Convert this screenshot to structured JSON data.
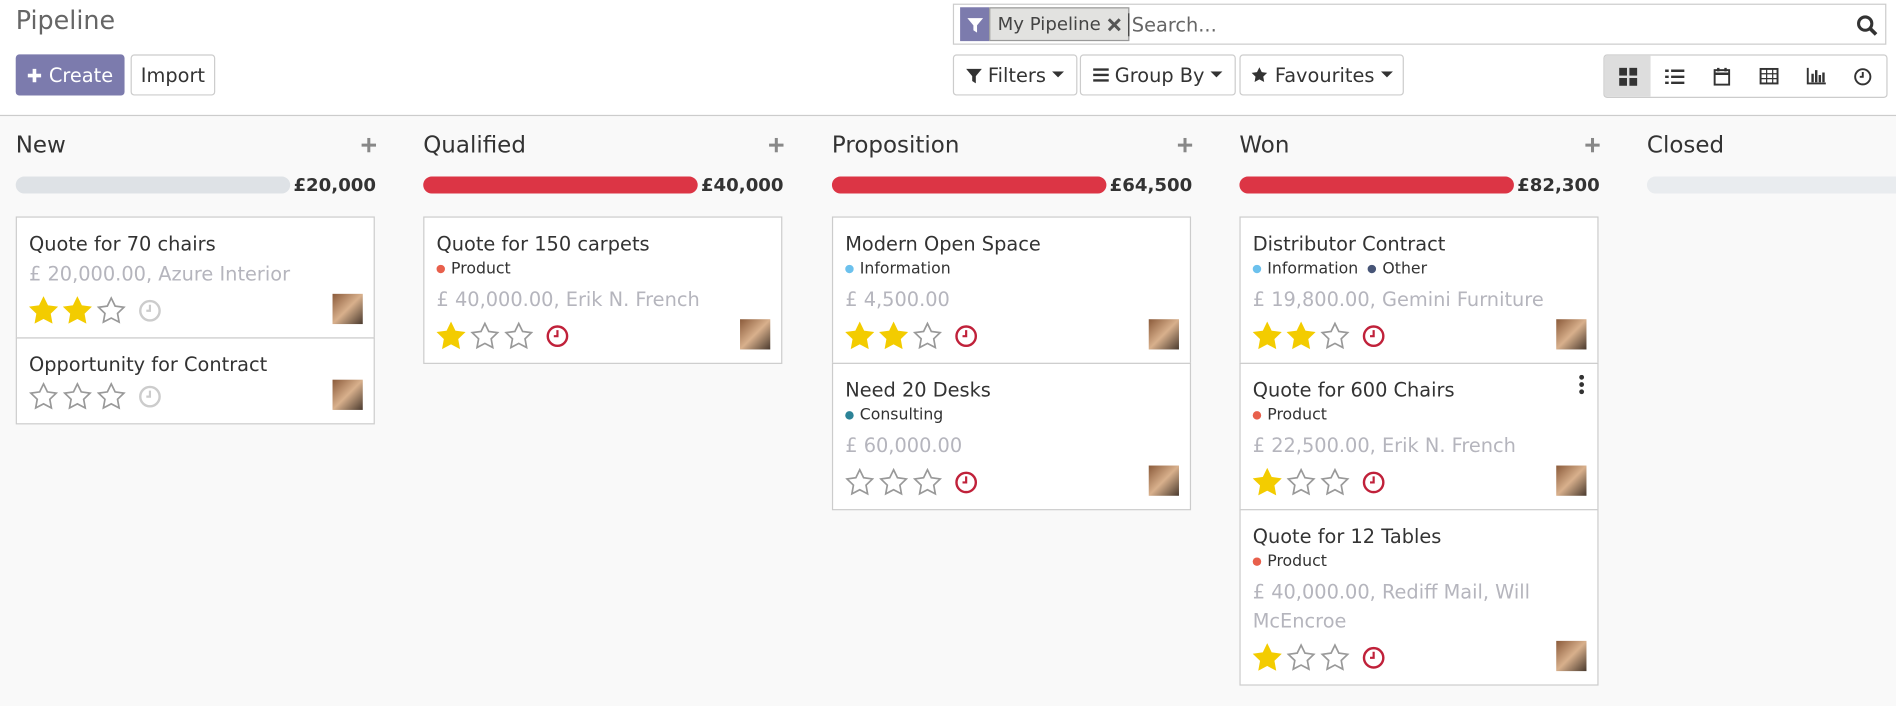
{
  "header": {
    "title": "Pipeline",
    "create": "Create",
    "import": "Import",
    "facet": "My Pipeline",
    "search_placeholder": "Search...",
    "filters": "Filters",
    "group_by": "Group By",
    "favourites": "Favourites"
  },
  "columns": [
    {
      "name": "New",
      "total": "£20,000",
      "bar_color": "#dee2e6",
      "cards": [
        {
          "title": "Quote for 70 chairs",
          "tags": [],
          "amount": "£ 20,000.00, Azure Interior",
          "priority": 2,
          "activity_color": "#ccc"
        },
        {
          "title": "Opportunity for Contract",
          "tags": [],
          "priority": 0,
          "activity_color": "#ccc"
        }
      ]
    },
    {
      "name": "Qualified",
      "total": "£40,000",
      "bar_color": "#dc3545",
      "cards": [
        {
          "title": "Quote for 150 carpets",
          "tags": [
            {
              "name": "Product",
              "color": "#e8604c"
            }
          ],
          "amount": "£ 40,000.00, Erik N. French",
          "priority": 1,
          "activity_color": "#c0213a"
        }
      ]
    },
    {
      "name": "Proposition",
      "total": "£64,500",
      "bar_color": "#dc3545",
      "cards": [
        {
          "title": "Modern Open Space",
          "tags": [
            {
              "name": "Information",
              "color": "#6cc1ed"
            }
          ],
          "amount": "£ 4,500.00",
          "priority": 2,
          "activity_color": "#c0213a"
        },
        {
          "title": "Need 20 Desks",
          "tags": [
            {
              "name": "Consulting",
              "color": "#2c8397"
            }
          ],
          "amount": "£ 60,000.00",
          "priority": 0,
          "activity_color": "#c0213a"
        }
      ]
    },
    {
      "name": "Won",
      "total": "£82,300",
      "bar_color": "#dc3545",
      "cards": [
        {
          "title": "Distributor Contract",
          "tags": [
            {
              "name": "Information",
              "color": "#6cc1ed"
            },
            {
              "name": "Other",
              "color": "#475577"
            }
          ],
          "amount": "£ 19,800.00, Gemini Furniture",
          "priority": 2,
          "activity_color": "#c0213a"
        },
        {
          "title": "Quote for 600 Chairs",
          "tags": [
            {
              "name": "Product",
              "color": "#e8604c"
            }
          ],
          "amount": "£ 22,500.00, Erik N. French",
          "priority": 1,
          "activity_color": "#c0213a"
        },
        {
          "title": "Quote for 12 Tables",
          "tags": [
            {
              "name": "Product",
              "color": "#e8604c"
            }
          ],
          "amount": "£ 40,000.00, Rediff Mail, Will McEncroe",
          "priority": 1,
          "activity_color": "#c0213a"
        }
      ]
    },
    {
      "name": "Closed",
      "bar_color": "#e9ecef",
      "cards": []
    }
  ]
}
